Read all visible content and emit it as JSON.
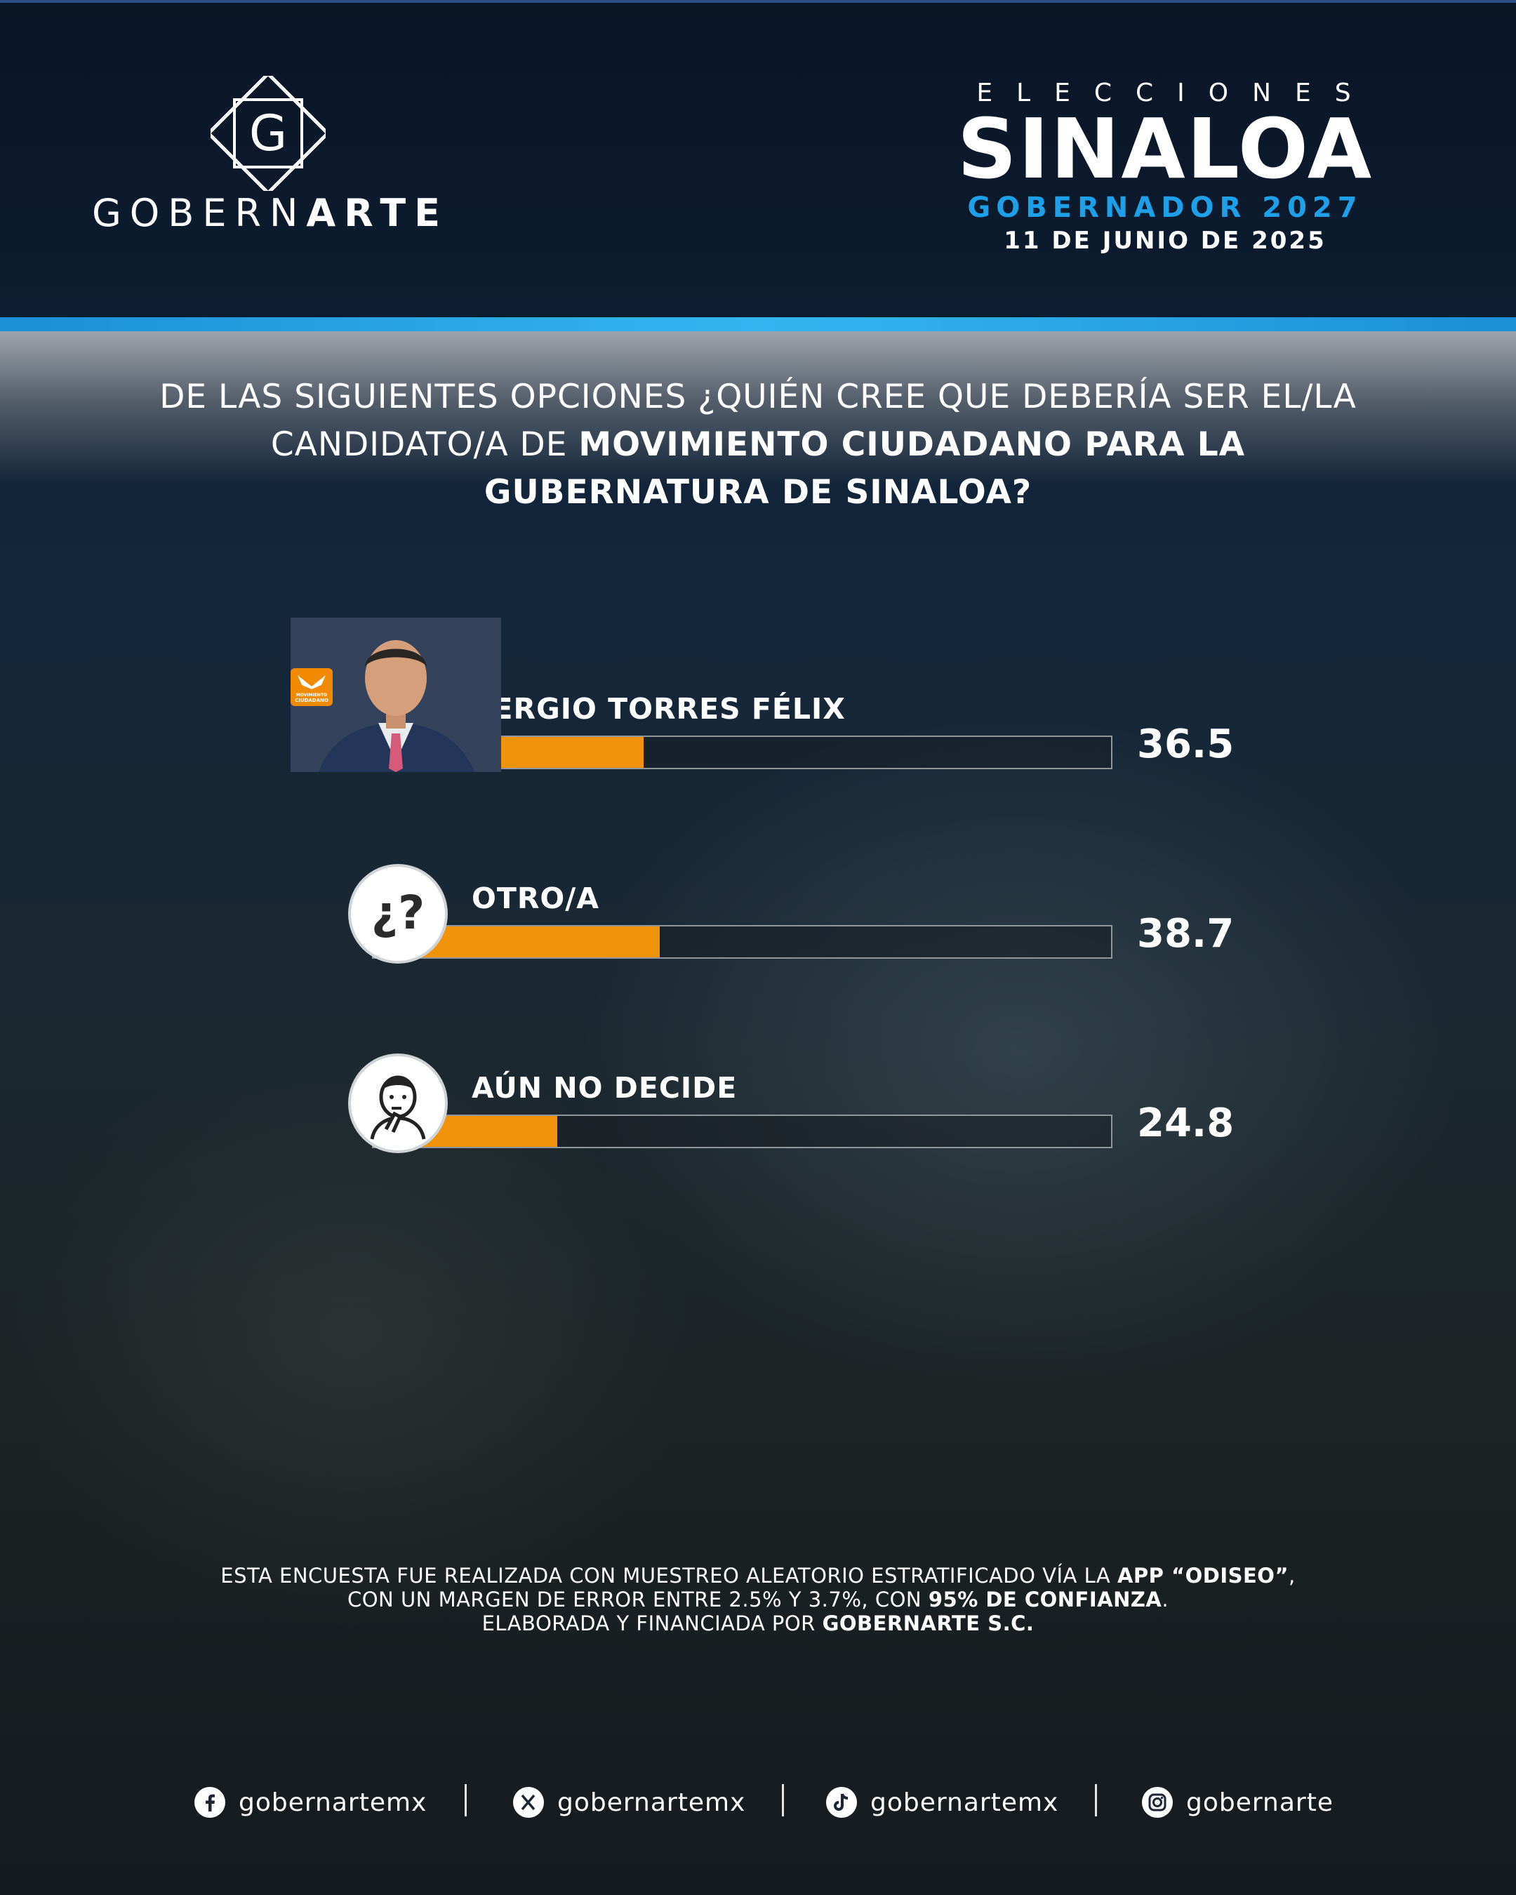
{
  "brand": {
    "name_light": "GOBERN",
    "name_bold": "ARTE",
    "logo_letter": "G"
  },
  "header": {
    "kicker": "ELECCIONES",
    "title": "SINALOA",
    "subtitle": "GOBERNADOR 2027",
    "date": "11 DE JUNIO DE 2025"
  },
  "question": {
    "part1": "DE LAS SIGUIENTES OPCIONES ¿QUIÉN CREE QUE DEBERÍA SER EL/LA CANDIDATO/A DE ",
    "bold": "MOVIMIENTO CIUDADANO PARA LA GUBERNATURA DE SINALOA?"
  },
  "chart_data": {
    "type": "bar",
    "orientation": "horizontal",
    "categories": [
      "SERGIO TORRES FÉLIX",
      "OTRO/A",
      "AÚN NO DECIDE"
    ],
    "values": [
      36.5,
      38.7,
      24.8
    ],
    "value_labels": [
      "36.5",
      "38.7",
      "24.8"
    ],
    "bar_color": "#f0920a",
    "icons": [
      "candidate-photo",
      "question-mark-icon",
      "thinking-person-icon"
    ]
  },
  "party_badge": {
    "line1": "MOVIMIENTO",
    "line2": "CIUDADANO"
  },
  "methodology": {
    "line1_a": "ESTA ENCUESTA FUE REALIZADA CON MUESTREO ALEATORIO ESTRATIFICADO VÍA LA ",
    "line1_b": "APP “ODISEO”",
    "line1_c": ",",
    "line2_a": "CON UN MARGEN DE ERROR ENTRE 2.5% Y 3.7%, CON ",
    "line2_b": "95% DE CONFIANZA",
    "line2_c": ".",
    "line3_a": "ELABORADA Y FINANCIADA POR ",
    "line3_b": "GOBERNARTE S.C."
  },
  "social": [
    {
      "icon": "facebook-icon",
      "handle": "gobernartemx"
    },
    {
      "icon": "x-icon",
      "handle": "gobernartemx"
    },
    {
      "icon": "tiktok-icon",
      "handle": "gobernartemx"
    },
    {
      "icon": "instagram-icon",
      "handle": "gobernarte"
    }
  ]
}
